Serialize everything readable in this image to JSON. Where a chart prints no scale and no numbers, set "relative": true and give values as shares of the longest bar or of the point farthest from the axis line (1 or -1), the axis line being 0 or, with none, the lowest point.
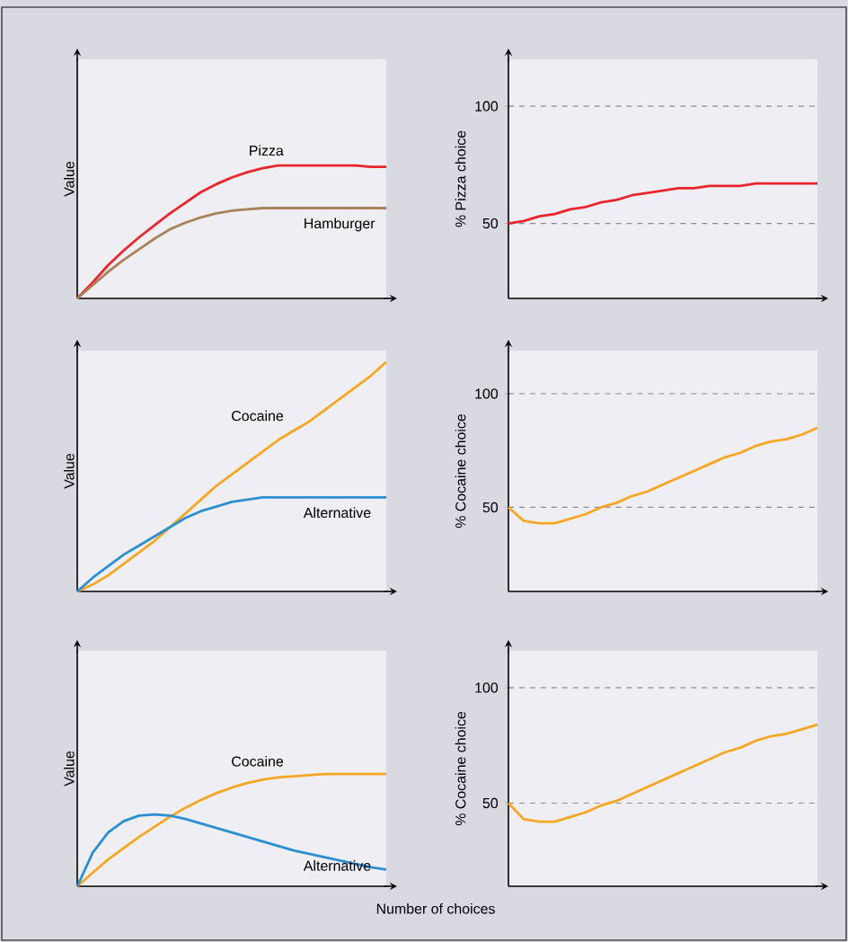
{
  "chart_data": [
    {
      "type": "line",
      "ylabel": "Value",
      "relative": true,
      "categories": [
        null,
        null,
        null,
        null,
        null,
        null,
        null,
        null,
        null,
        null,
        null,
        null,
        null,
        null,
        null,
        null,
        null,
        null,
        null,
        null,
        null
      ],
      "series": [
        {
          "name": "Pizza",
          "color": "#e8262b",
          "values": [
            0,
            0.12,
            0.25,
            0.36,
            0.46,
            0.55,
            0.64,
            0.72,
            0.8,
            0.86,
            0.91,
            0.95,
            0.98,
            1,
            1,
            1,
            1,
            1,
            1,
            0.99,
            0.99
          ]
        },
        {
          "name": "Hamburger",
          "color": "#a8825a",
          "values": [
            0,
            0.1,
            0.2,
            0.29,
            0.37,
            0.45,
            0.52,
            0.57,
            0.61,
            0.64,
            0.66,
            0.67,
            0.68,
            0.68,
            0.68,
            0.68,
            0.68,
            0.68,
            0.68,
            0.68,
            0.68
          ]
        }
      ]
    },
    {
      "type": "line",
      "ylabel": "% Pizza choice",
      "categories": [
        null,
        null,
        null,
        null,
        null,
        null,
        null,
        null,
        null,
        null,
        null,
        null,
        null,
        null,
        null,
        null,
        null,
        null,
        null,
        null,
        null
      ],
      "ylim": [
        18,
        120
      ],
      "yticks": [
        50,
        100
      ],
      "grid": "y",
      "series": [
        {
          "color": "#e8262b",
          "values": [
            50,
            51,
            53,
            54,
            56,
            57,
            59,
            60,
            62,
            63,
            64,
            65,
            65,
            66,
            66,
            66,
            67,
            67,
            67,
            67,
            67
          ]
        }
      ]
    },
    {
      "type": "line",
      "ylabel": "Value",
      "relative": true,
      "categories": [
        null,
        null,
        null,
        null,
        null,
        null,
        null,
        null,
        null,
        null,
        null,
        null,
        null,
        null,
        null,
        null,
        null,
        null,
        null,
        null,
        null
      ],
      "series": [
        {
          "name": "Cocaine",
          "color": "#f5a623",
          "values": [
            0,
            0.03,
            0.07,
            0.12,
            0.17,
            0.22,
            0.28,
            0.34,
            0.4,
            0.46,
            0.51,
            0.56,
            0.61,
            0.66,
            0.7,
            0.74,
            0.79,
            0.84,
            0.89,
            0.94,
            1
          ]
        },
        {
          "name": "Alternative",
          "color": "#2d8fd0",
          "values": [
            0,
            0.06,
            0.11,
            0.16,
            0.2,
            0.24,
            0.28,
            0.32,
            0.35,
            0.37,
            0.39,
            0.4,
            0.41,
            0.41,
            0.41,
            0.41,
            0.41,
            0.41,
            0.41,
            0.41,
            0.41
          ]
        }
      ]
    },
    {
      "type": "line",
      "ylabel": "% Cocaine choice",
      "categories": [
        null,
        null,
        null,
        null,
        null,
        null,
        null,
        null,
        null,
        null,
        null,
        null,
        null,
        null,
        null,
        null,
        null,
        null,
        null,
        null,
        null
      ],
      "ylim": [
        13,
        119
      ],
      "yticks": [
        50,
        100
      ],
      "grid": "y",
      "series": [
        {
          "color": "#f5a623",
          "values": [
            50,
            44,
            43,
            43,
            45,
            47,
            50,
            52,
            55,
            57,
            60,
            63,
            66,
            69,
            72,
            74,
            77,
            79,
            80,
            82,
            85
          ]
        }
      ]
    },
    {
      "type": "line",
      "ylabel": "Value",
      "xlabel": "Number of choices",
      "relative": true,
      "categories": [
        null,
        null,
        null,
        null,
        null,
        null,
        null,
        null,
        null,
        null,
        null,
        null,
        null,
        null,
        null,
        null,
        null,
        null,
        null,
        null,
        null
      ],
      "series": [
        {
          "name": "Cocaine",
          "color": "#f5a623",
          "values": [
            0,
            0.12,
            0.24,
            0.34,
            0.44,
            0.53,
            0.62,
            0.7,
            0.77,
            0.83,
            0.88,
            0.92,
            0.95,
            0.97,
            0.98,
            0.99,
            1,
            1,
            1,
            1,
            1
          ]
        },
        {
          "name": "Alternative",
          "color": "#2d8fd0",
          "values": [
            0,
            0.3,
            0.48,
            0.58,
            0.63,
            0.64,
            0.63,
            0.6,
            0.56,
            0.52,
            0.48,
            0.44,
            0.4,
            0.36,
            0.32,
            0.29,
            0.26,
            0.23,
            0.2,
            0.17,
            0.15
          ]
        }
      ]
    },
    {
      "type": "line",
      "ylabel": "% Cocaine choice",
      "categories": [
        null,
        null,
        null,
        null,
        null,
        null,
        null,
        null,
        null,
        null,
        null,
        null,
        null,
        null,
        null,
        null,
        null,
        null,
        null,
        null,
        null
      ],
      "ylim": [
        14,
        116
      ],
      "yticks": [
        50,
        100
      ],
      "grid": "y",
      "series": [
        {
          "color": "#f5a623",
          "values": [
            50,
            43,
            42,
            42,
            44,
            46,
            49,
            51,
            54,
            57,
            60,
            63,
            66,
            69,
            72,
            74,
            77,
            79,
            80,
            82,
            84
          ]
        }
      ]
    }
  ]
}
